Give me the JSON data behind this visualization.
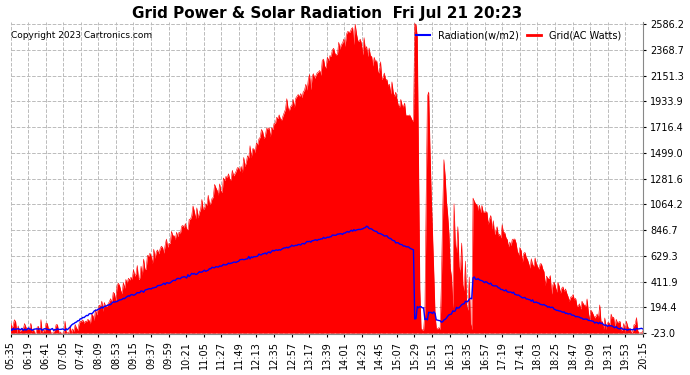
{
  "title": "Grid Power & Solar Radiation  Fri Jul 21 20:23",
  "copyright": "Copyright 2023 Cartronics.com",
  "legend_radiation": "Radiation(w/m2)",
  "legend_grid": "Grid(AC Watts)",
  "yticks": [
    -23.0,
    194.4,
    411.9,
    629.3,
    846.7,
    1064.2,
    1281.6,
    1499.0,
    1716.4,
    1933.9,
    2151.3,
    2368.7,
    2586.2
  ],
  "ymin": -23.0,
  "ymax": 2586.2,
  "background_color": "#ffffff",
  "plot_bg_color": "#ffffff",
  "grid_color": "#bbbbbb",
  "fill_color": "#ff0000",
  "line_color_radiation": "#0000ff",
  "line_color_grid": "#ff0000",
  "title_fontsize": 11,
  "tick_fontsize": 7,
  "xtick_labels": [
    "05:35",
    "06:19",
    "06:41",
    "07:05",
    "07:47",
    "08:09",
    "08:53",
    "09:15",
    "09:37",
    "09:59",
    "10:21",
    "11:05",
    "11:27",
    "11:49",
    "12:13",
    "12:35",
    "12:57",
    "13:17",
    "13:39",
    "14:01",
    "14:23",
    "14:45",
    "15:07",
    "15:29",
    "15:51",
    "16:13",
    "16:35",
    "16:57",
    "17:19",
    "17:41",
    "18:03",
    "18:25",
    "18:47",
    "19:09",
    "19:31",
    "19:53",
    "20:15"
  ]
}
